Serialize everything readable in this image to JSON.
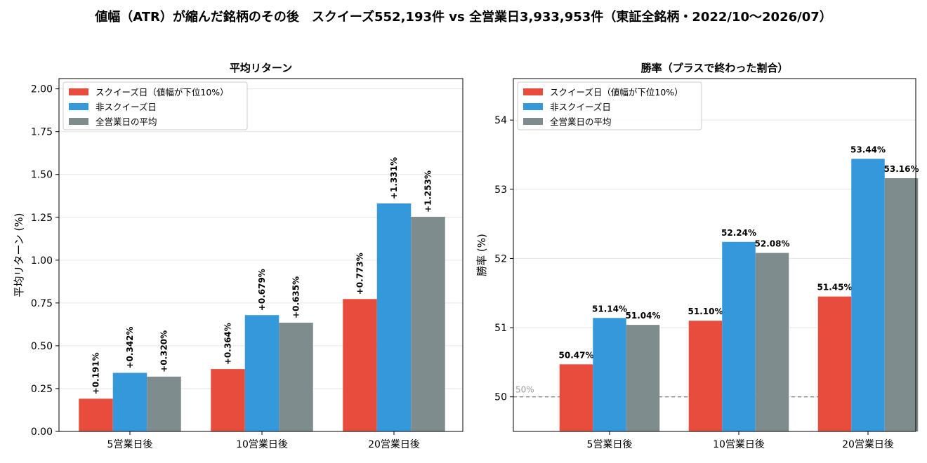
{
  "suptitle": "値幅（ATR）が縮んだ銘柄のその後　スクイーズ552,193件 vs 全営業日3,933,953件（東証全銘柄・2022/10〜2026/07）",
  "colors": {
    "squeeze": "#e74c3c",
    "non_squeeze": "#3498db",
    "all_days": "#7f8c8d",
    "ref_line": "#888888"
  },
  "chart_data": [
    {
      "type": "bar",
      "title": "平均リターン",
      "xlabel": "",
      "ylabel": "平均リターン (%)",
      "categories": [
        "5営業日後",
        "10営業日後",
        "20営業日後"
      ],
      "ylim": [
        0,
        2.06
      ],
      "yticks": [
        "0.00",
        "0.25",
        "0.50",
        "0.75",
        "1.00",
        "1.25",
        "1.50",
        "1.75",
        "2.00"
      ],
      "ytick_values": [
        0,
        0.25,
        0.5,
        0.75,
        1.0,
        1.25,
        1.5,
        1.75,
        2.0
      ],
      "grid": true,
      "legend_position": "top-left",
      "label_rotation": "vertical",
      "series": [
        {
          "name": "スクイーズ日（値幅が下位10%）",
          "values": [
            0.191,
            0.364,
            0.773
          ],
          "labels": [
            "+0.191%",
            "+0.364%",
            "+0.773%"
          ]
        },
        {
          "name": "非スクイーズ日",
          "values": [
            0.342,
            0.679,
            1.331
          ],
          "labels": [
            "+0.342%",
            "+0.679%",
            "+1.331%"
          ]
        },
        {
          "name": "全営業日の平均",
          "values": [
            0.32,
            0.635,
            1.253
          ],
          "labels": [
            "+0.320%",
            "+0.635%",
            "+1.253%"
          ]
        }
      ]
    },
    {
      "type": "bar",
      "title": "勝率（プラスで終わった割合）",
      "xlabel": "",
      "ylabel": "勝率 (%)",
      "categories": [
        "5営業日後",
        "10営業日後",
        "20営業日後"
      ],
      "ylim": [
        49.5,
        54.6
      ],
      "yticks": [
        "50",
        "51",
        "52",
        "53",
        "54"
      ],
      "ytick_values": [
        50,
        51,
        52,
        53,
        54
      ],
      "grid": true,
      "legend_position": "top-left",
      "label_rotation": "horizontal",
      "reference_line": {
        "value": 50,
        "label": "50%"
      },
      "series": [
        {
          "name": "スクイーズ日（値幅が下位10%）",
          "values": [
            50.47,
            51.1,
            51.45
          ],
          "labels": [
            "50.47%",
            "51.10%",
            "51.45%"
          ]
        },
        {
          "name": "非スクイーズ日",
          "values": [
            51.14,
            52.24,
            53.44
          ],
          "labels": [
            "51.14%",
            "52.24%",
            "53.44%"
          ]
        },
        {
          "name": "全営業日の平均",
          "values": [
            51.04,
            52.08,
            53.16
          ],
          "labels": [
            "51.04%",
            "52.08%",
            "53.16%"
          ]
        }
      ]
    }
  ]
}
